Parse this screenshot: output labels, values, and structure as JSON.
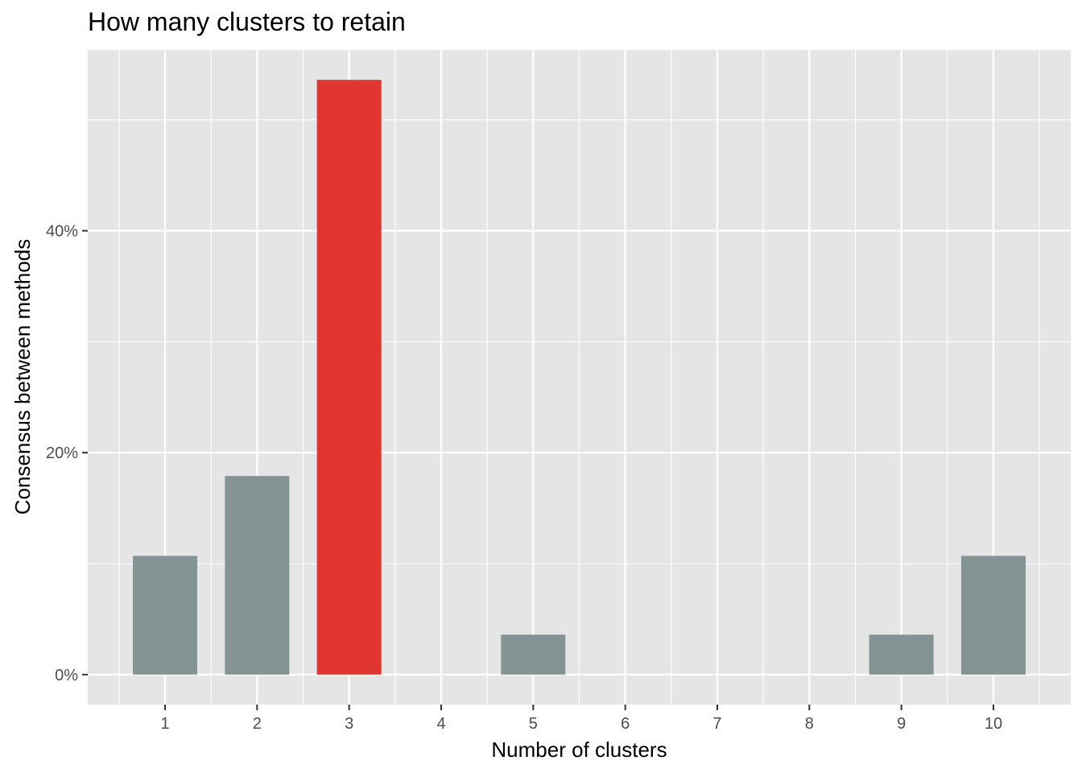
{
  "chart_data": {
    "type": "bar",
    "title": "How many clusters to retain",
    "xlabel": "Number of clusters",
    "ylabel": "Consensus between methods",
    "categories": [
      "1",
      "2",
      "3",
      "4",
      "5",
      "6",
      "7",
      "8",
      "9",
      "10"
    ],
    "values": [
      10.7,
      17.9,
      53.6,
      0,
      3.6,
      0,
      0,
      0,
      3.6,
      10.7
    ],
    "highlight_category": "3",
    "ylim": [
      -2.7,
      56.3
    ],
    "y_ticks": [
      {
        "value": 0,
        "label": "0%"
      },
      {
        "value": 20,
        "label": "20%"
      },
      {
        "value": 40,
        "label": "40%"
      }
    ],
    "grid": true,
    "legend": "none"
  },
  "colors": {
    "panel_background": "#e5e5e5",
    "grid_line": "#ffffff",
    "bar_default": "#849495",
    "bar_highlight": "#e03531",
    "tick_text": "#4d4d4d",
    "tick_mark": "#333333",
    "text": "#000000"
  }
}
